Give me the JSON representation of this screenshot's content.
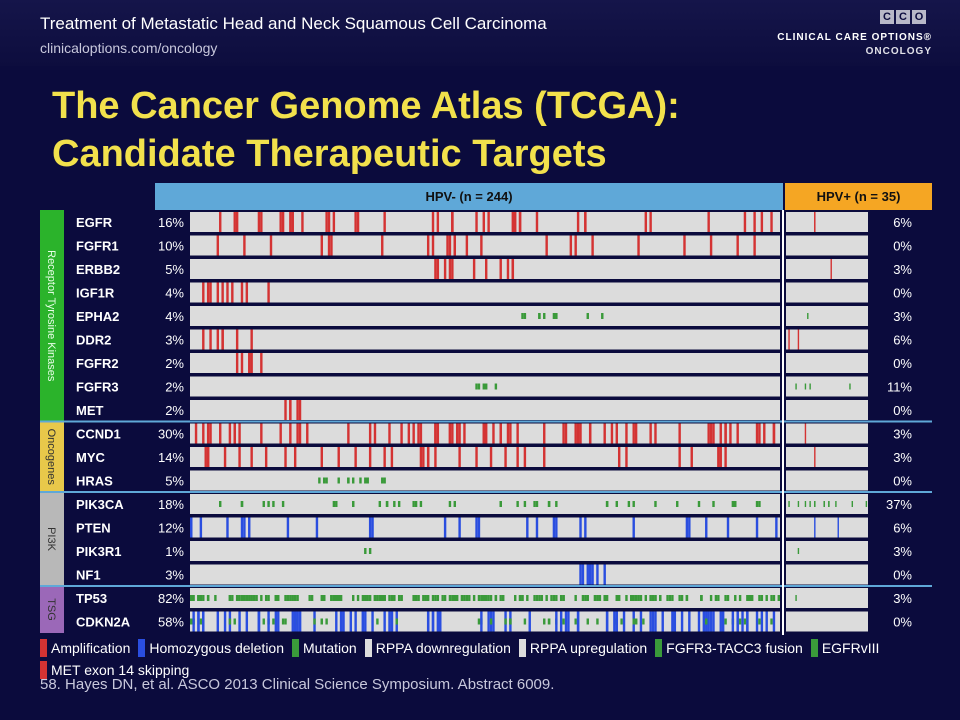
{
  "header": {
    "title": "Treatment of Metastatic Head and Neck Squamous Cell Carcinoma",
    "subtitle": "clinicaloptions.com/oncology",
    "logo_letters": [
      "C",
      "C",
      "O"
    ],
    "logo_line1": "CLINICAL CARE OPTIONS®",
    "logo_line2": "ONCOLOGY"
  },
  "slide_title_line1": "The Cancer Genome Atlas (TCGA):",
  "slide_title_line2": "Candidate Therapeutic Targets",
  "chart_data": {
    "type": "heatmap",
    "columns": [
      {
        "label": "HPV- (n = 244)",
        "n": 244,
        "color": "#5fa8d8"
      },
      {
        "label": "HPV+ (n = 35)",
        "n": 35,
        "color": "#f5a623"
      }
    ],
    "groups": [
      {
        "label": "Receptor Tyrosine Kinases",
        "color": "#2bb32b",
        "genes": [
          "EGFR",
          "FGFR1",
          "ERBB2",
          "IGF1R",
          "EPHA2",
          "DDR2",
          "FGFR2",
          "FGFR3",
          "MET"
        ]
      },
      {
        "label": "Oncogenes",
        "color": "#e8c84a",
        "genes": [
          "CCND1",
          "MYC",
          "HRAS"
        ]
      },
      {
        "label": "PI3K",
        "color": "#b8b8b8",
        "genes": [
          "PIK3CA",
          "PTEN",
          "PIK3R1",
          "NF1"
        ]
      },
      {
        "label": "TSG",
        "color": "#9b68b8",
        "genes": [
          "TP53",
          "CDKN2A"
        ]
      }
    ],
    "rows": [
      {
        "gene": "EGFR",
        "hpv_neg": "16%",
        "hpv_pos": "6%"
      },
      {
        "gene": "FGFR1",
        "hpv_neg": "10%",
        "hpv_pos": "0%"
      },
      {
        "gene": "ERBB2",
        "hpv_neg": "5%",
        "hpv_pos": "3%"
      },
      {
        "gene": "IGF1R",
        "hpv_neg": "4%",
        "hpv_pos": "0%"
      },
      {
        "gene": "EPHA2",
        "hpv_neg": "4%",
        "hpv_pos": "3%"
      },
      {
        "gene": "DDR2",
        "hpv_neg": "3%",
        "hpv_pos": "6%"
      },
      {
        "gene": "FGFR2",
        "hpv_neg": "2%",
        "hpv_pos": "0%"
      },
      {
        "gene": "FGFR3",
        "hpv_neg": "2%",
        "hpv_pos": "11%"
      },
      {
        "gene": "MET",
        "hpv_neg": "2%",
        "hpv_pos": "0%"
      },
      {
        "gene": "CCND1",
        "hpv_neg": "30%",
        "hpv_pos": "3%"
      },
      {
        "gene": "MYC",
        "hpv_neg": "14%",
        "hpv_pos": "3%"
      },
      {
        "gene": "HRAS",
        "hpv_neg": "5%",
        "hpv_pos": "0%"
      },
      {
        "gene": "PIK3CA",
        "hpv_neg": "18%",
        "hpv_pos": "37%"
      },
      {
        "gene": "PTEN",
        "hpv_neg": "12%",
        "hpv_pos": "6%"
      },
      {
        "gene": "PIK3R1",
        "hpv_neg": "1%",
        "hpv_pos": "3%"
      },
      {
        "gene": "NF1",
        "hpv_neg": "3%",
        "hpv_pos": "0%"
      },
      {
        "gene": "TP53",
        "hpv_neg": "82%",
        "hpv_pos": "3%"
      },
      {
        "gene": "CDKN2A",
        "hpv_neg": "58%",
        "hpv_pos": "0%"
      }
    ],
    "legend": [
      {
        "label": "Amplification",
        "color": "#d43333"
      },
      {
        "label": "Homozygous deletion",
        "color": "#2a4ee0"
      },
      {
        "label": "Mutation",
        "color": "#3a9a3a"
      },
      {
        "label": "RPPA downregulation",
        "color": "#dddddd"
      },
      {
        "label": "RPPA upregulation",
        "color": "#dddddd"
      },
      {
        "label": "FGFR3-TACC3 fusion",
        "color": "#3a9a3a"
      },
      {
        "label": "EGFRvIII",
        "color": "#3a9a3a"
      },
      {
        "label": "MET exon 14 skipping",
        "color": "#d43333"
      }
    ]
  },
  "reference": "58. Hayes DN, et al. ASCO 2013 Clinical Science Symposium. Abstract 6009."
}
